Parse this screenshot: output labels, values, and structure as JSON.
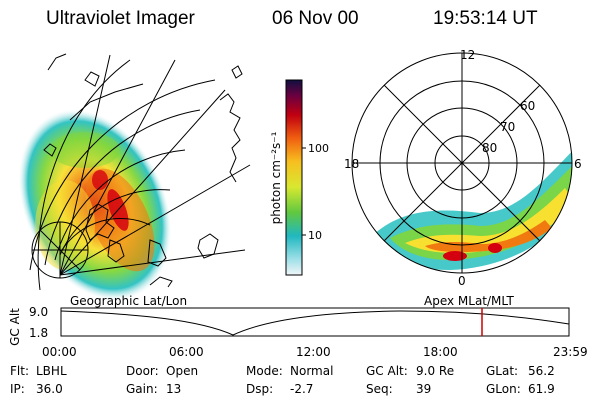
{
  "header": {
    "title": "Ultraviolet Imager",
    "date": "06 Nov 00",
    "time": "19:53:14 UT"
  },
  "colorbar": {
    "label": "photon cm⁻²s⁻¹",
    "ticks": [
      "100",
      "10"
    ]
  },
  "polar_plot": {
    "mlt_labels": [
      "12",
      "18",
      "6",
      "0"
    ],
    "lat_labels": [
      "60",
      "70",
      "80"
    ]
  },
  "timeline": {
    "left_label": "Geographic Lat/Lon",
    "right_label": "Apex MLat/MLT",
    "axis_title": "GC Alt",
    "y_ticks": [
      "9.0",
      "1.8"
    ],
    "x_ticks": [
      "00:00",
      "06:00",
      "12:00",
      "18:00",
      "23:59"
    ],
    "marker_color": "#cc0000"
  },
  "info": {
    "row1": [
      {
        "key": "Flt:",
        "value": "LBHL"
      },
      {
        "key": "Door:",
        "value": "Open"
      },
      {
        "key": "Mode:",
        "value": "Normal"
      },
      {
        "key": "GC Alt:",
        "value": "9.0 Re"
      },
      {
        "key": "GLat:",
        "value": "56.2"
      }
    ],
    "row2": [
      {
        "key": "IP:",
        "value": "36.0"
      },
      {
        "key": "Gain:",
        "value": "13"
      },
      {
        "key": "Dsp:",
        "value": "-2.7"
      },
      {
        "key": "Seq:",
        "value": "39"
      },
      {
        "key": "GLon:",
        "value": "61.9"
      }
    ]
  }
}
